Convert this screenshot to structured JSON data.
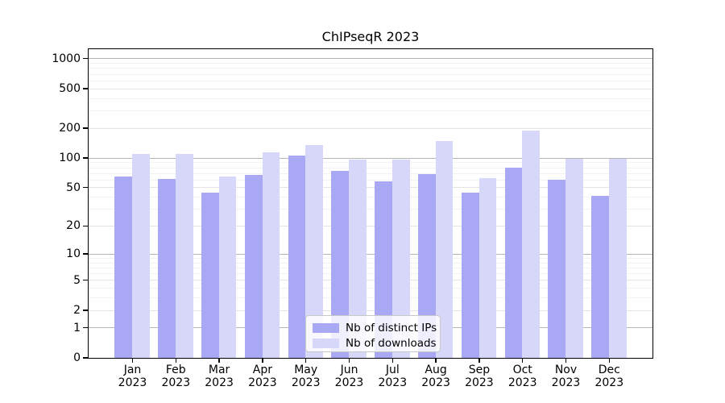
{
  "chart_data": {
    "type": "bar",
    "title": "ChIPseqR 2023",
    "categories": [
      "Jan",
      "Feb",
      "Mar",
      "Apr",
      "May",
      "Jun",
      "Jul",
      "Aug",
      "Sep",
      "Oct",
      "Nov",
      "Dec"
    ],
    "category_year": "2023",
    "series": [
      {
        "name": "Nb of distinct IPs",
        "color": "#a8a8f5",
        "values": [
          65,
          61,
          44,
          67,
          106,
          74,
          58,
          68,
          44,
          79,
          60,
          41
        ]
      },
      {
        "name": "Nb of downloads",
        "color": "#d7d7f9",
        "values": [
          110,
          110,
          64,
          113,
          135,
          96,
          96,
          148,
          62,
          188,
          97,
          98
        ]
      }
    ],
    "yticks": [
      0,
      1,
      2,
      5,
      10,
      20,
      50,
      100,
      200,
      500,
      1000
    ],
    "minor_yticks": [
      3,
      4,
      6,
      7,
      8,
      9,
      30,
      40,
      60,
      70,
      80,
      90,
      300,
      400,
      600,
      700,
      800,
      900
    ],
    "scale": "log10(1+x)",
    "ylim": [
      0,
      1250
    ],
    "grid": true,
    "legend_position": "lower-center-inside",
    "colors": {
      "axis": "#000000",
      "major_grid": "#b5b5b5",
      "labeled_grid": "#e4e4e4",
      "minor_grid": "#f2f2f2",
      "background": "#ffffff"
    }
  }
}
